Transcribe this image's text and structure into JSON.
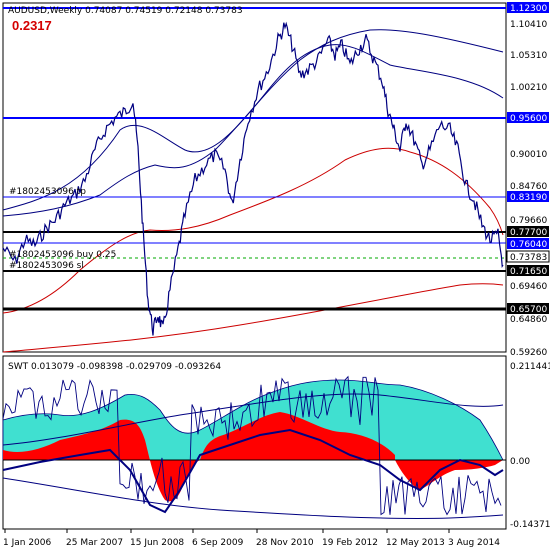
{
  "main_chart": {
    "header": "AUDUSD,Weekly 0.74087 0.74519 0.72148 0.73783",
    "big_value": "0.2317",
    "price_labels": [
      "1.10410",
      "1.05310",
      "1.00210",
      "0.90010",
      "0.84760",
      "0.79660",
      "0.69460",
      "0.64860",
      "0.59260"
    ],
    "level_labels": [
      {
        "text": "1.12300",
        "bg": "#0000ff",
        "fg": "#ffffff"
      },
      {
        "text": "0.95600",
        "bg": "#0000ff",
        "fg": "#ffffff"
      },
      {
        "text": "0.83190",
        "bg": "#0000ff",
        "fg": "#ffffff"
      },
      {
        "text": "0.77700",
        "bg": "#000000",
        "fg": "#ffffff"
      },
      {
        "text": "0.76040",
        "bg": "#0000ff",
        "fg": "#ffffff"
      },
      {
        "text": "0.73783",
        "bg": "#ffffff",
        "fg": "#000000"
      },
      {
        "text": "0.71650",
        "bg": "#000000",
        "fg": "#ffffff"
      },
      {
        "text": "0.65700",
        "bg": "#000000",
        "fg": "#ffffff"
      }
    ],
    "order_tags": [
      "#1802453096 tp",
      "#1802453096 buy 0.25",
      "#1802453096 sl"
    ]
  },
  "indicator": {
    "header": "SWT 0.013079 -0.098398 -0.029709 -0.093264",
    "price_labels": [
      "0.211441",
      "0.00",
      "-0.143712"
    ]
  },
  "x_axis": {
    "labels": [
      "1 Jan 2006",
      "25 Mar 2007",
      "15 Jun 2008",
      "6 Sep 2009",
      "28 Nov 2010",
      "19 Feb 2012",
      "12 May 2013",
      "3 Aug 2014"
    ]
  },
  "colors": {
    "price_line": "#000080",
    "level_blue": "#0000ff",
    "level_black": "#000000",
    "ma_red": "#cc0000",
    "turquoise": "#40e0d0",
    "red_fill": "#ff0000"
  }
}
